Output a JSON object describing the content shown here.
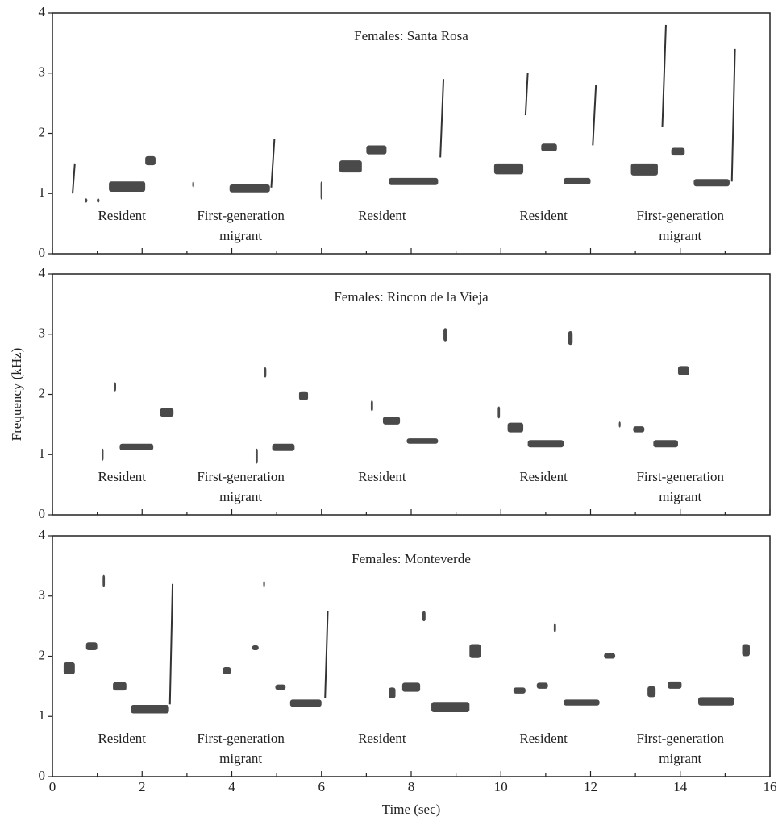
{
  "chart_data": [
    {
      "type": "spectrogram",
      "title": "Females: Santa Rosa",
      "labels": [
        [
          "Resident"
        ],
        [
          "First-generation",
          "migrant"
        ],
        [
          "Resident"
        ],
        [
          "Resident"
        ],
        [
          "First-generation",
          "migrant"
        ]
      ],
      "syllables": [
        [
          0.45,
          0.5,
          1.0,
          1.5
        ],
        [
          0.72,
          0.78,
          0.85,
          0.92
        ],
        [
          0.99,
          1.05,
          0.85,
          0.92
        ],
        [
          1.26,
          2.07,
          1.03,
          1.2
        ],
        [
          2.07,
          2.3,
          1.47,
          1.62
        ],
        [
          3.12,
          3.16,
          1.1,
          1.2
        ],
        [
          3.95,
          4.85,
          1.02,
          1.15
        ],
        [
          4.88,
          4.95,
          1.1,
          1.9
        ],
        [
          5.98,
          6.02,
          0.9,
          1.2
        ],
        [
          6.4,
          6.9,
          1.35,
          1.55
        ],
        [
          7.0,
          7.45,
          1.65,
          1.8
        ],
        [
          7.5,
          8.6,
          1.14,
          1.26
        ],
        [
          8.65,
          8.72,
          1.6,
          2.9
        ],
        [
          9.85,
          10.5,
          1.32,
          1.5
        ],
        [
          10.55,
          10.6,
          2.3,
          3.0
        ],
        [
          10.9,
          11.25,
          1.7,
          1.83
        ],
        [
          11.4,
          12.0,
          1.15,
          1.26
        ],
        [
          12.05,
          12.12,
          1.8,
          2.8
        ],
        [
          12.9,
          13.5,
          1.3,
          1.5
        ],
        [
          13.6,
          13.68,
          2.1,
          3.8
        ],
        [
          13.8,
          14.1,
          1.63,
          1.76
        ],
        [
          14.3,
          15.1,
          1.12,
          1.24
        ],
        [
          15.15,
          15.22,
          1.2,
          3.4
        ]
      ],
      "xlim": [
        0,
        16
      ],
      "ylim": [
        0,
        4
      ],
      "xticks": [
        0,
        2,
        4,
        6,
        8,
        10,
        12,
        14,
        16
      ],
      "yticks": [
        0,
        1,
        2,
        3,
        4
      ],
      "xtick_labels": false
    },
    {
      "type": "spectrogram",
      "title": "Females: Rincon de la Vieja",
      "ylabel": "Frequency (kHz)",
      "labels": [
        [
          "Resident"
        ],
        [
          "First-generation",
          "migrant"
        ],
        [
          "Resident"
        ],
        [
          "Resident"
        ],
        [
          "First-generation",
          "migrant"
        ]
      ],
      "syllables": [
        [
          1.1,
          1.14,
          0.9,
          1.1
        ],
        [
          1.37,
          1.42,
          2.05,
          2.2
        ],
        [
          1.5,
          2.25,
          1.07,
          1.18
        ],
        [
          2.4,
          2.7,
          1.63,
          1.77
        ],
        [
          4.53,
          4.58,
          0.85,
          1.1
        ],
        [
          4.72,
          4.77,
          2.28,
          2.45
        ],
        [
          4.9,
          5.4,
          1.06,
          1.18
        ],
        [
          5.5,
          5.7,
          1.9,
          2.05
        ],
        [
          7.1,
          7.15,
          1.72,
          1.9
        ],
        [
          7.37,
          7.75,
          1.5,
          1.63
        ],
        [
          7.9,
          8.6,
          1.18,
          1.27
        ],
        [
          8.72,
          8.8,
          2.88,
          3.1
        ],
        [
          9.93,
          9.98,
          1.6,
          1.8
        ],
        [
          10.15,
          10.5,
          1.37,
          1.53
        ],
        [
          10.6,
          11.4,
          1.12,
          1.24
        ],
        [
          11.5,
          11.6,
          2.82,
          3.05
        ],
        [
          12.63,
          12.67,
          1.45,
          1.55
        ],
        [
          12.95,
          13.2,
          1.37,
          1.47
        ],
        [
          13.4,
          13.95,
          1.12,
          1.24
        ],
        [
          13.95,
          14.2,
          2.32,
          2.47
        ]
      ],
      "xlim": [
        0,
        16
      ],
      "ylim": [
        0,
        4
      ],
      "xticks": [
        0,
        2,
        4,
        6,
        8,
        10,
        12,
        14,
        16
      ],
      "yticks": [
        0,
        1,
        2,
        3,
        4
      ],
      "xtick_labels": false
    },
    {
      "type": "spectrogram",
      "title": "Females: Monteverde",
      "xlabel": "Time (sec)",
      "labels": [
        [
          "Resident"
        ],
        [
          "First-generation",
          "migrant"
        ],
        [
          "Resident"
        ],
        [
          "Resident"
        ],
        [
          "First-generation",
          "migrant"
        ]
      ],
      "syllables": [
        [
          0.25,
          0.5,
          1.7,
          1.9
        ],
        [
          0.75,
          1.0,
          2.1,
          2.23
        ],
        [
          1.12,
          1.17,
          3.15,
          3.35
        ],
        [
          1.35,
          1.65,
          1.43,
          1.57
        ],
        [
          1.75,
          2.6,
          1.05,
          1.19
        ],
        [
          2.62,
          2.68,
          1.2,
          3.2
        ],
        [
          3.8,
          3.98,
          1.7,
          1.82
        ],
        [
          4.45,
          4.6,
          2.1,
          2.18
        ],
        [
          4.7,
          4.74,
          3.15,
          3.25
        ],
        [
          4.97,
          5.2,
          1.44,
          1.53
        ],
        [
          5.3,
          6.0,
          1.16,
          1.28
        ],
        [
          6.08,
          6.14,
          1.3,
          2.75
        ],
        [
          7.5,
          7.65,
          1.3,
          1.48
        ],
        [
          7.8,
          8.2,
          1.41,
          1.56
        ],
        [
          8.25,
          8.32,
          2.58,
          2.75
        ],
        [
          8.45,
          9.3,
          1.07,
          1.24
        ],
        [
          9.3,
          9.55,
          1.97,
          2.2
        ],
        [
          10.28,
          10.55,
          1.38,
          1.48
        ],
        [
          10.8,
          11.05,
          1.46,
          1.56
        ],
        [
          11.18,
          11.23,
          2.4,
          2.55
        ],
        [
          11.4,
          12.2,
          1.18,
          1.28
        ],
        [
          12.3,
          12.55,
          1.96,
          2.05
        ],
        [
          13.27,
          13.45,
          1.32,
          1.5
        ],
        [
          13.72,
          14.03,
          1.46,
          1.58
        ],
        [
          14.4,
          15.2,
          1.18,
          1.32
        ],
        [
          15.38,
          15.55,
          2.0,
          2.2
        ]
      ],
      "xlim": [
        0,
        16
      ],
      "ylim": [
        0,
        4
      ],
      "xticks": [
        0,
        2,
        4,
        6,
        8,
        10,
        12,
        14,
        16
      ],
      "yticks": [
        0,
        1,
        2,
        3,
        4
      ],
      "xtick_labels": true
    }
  ]
}
